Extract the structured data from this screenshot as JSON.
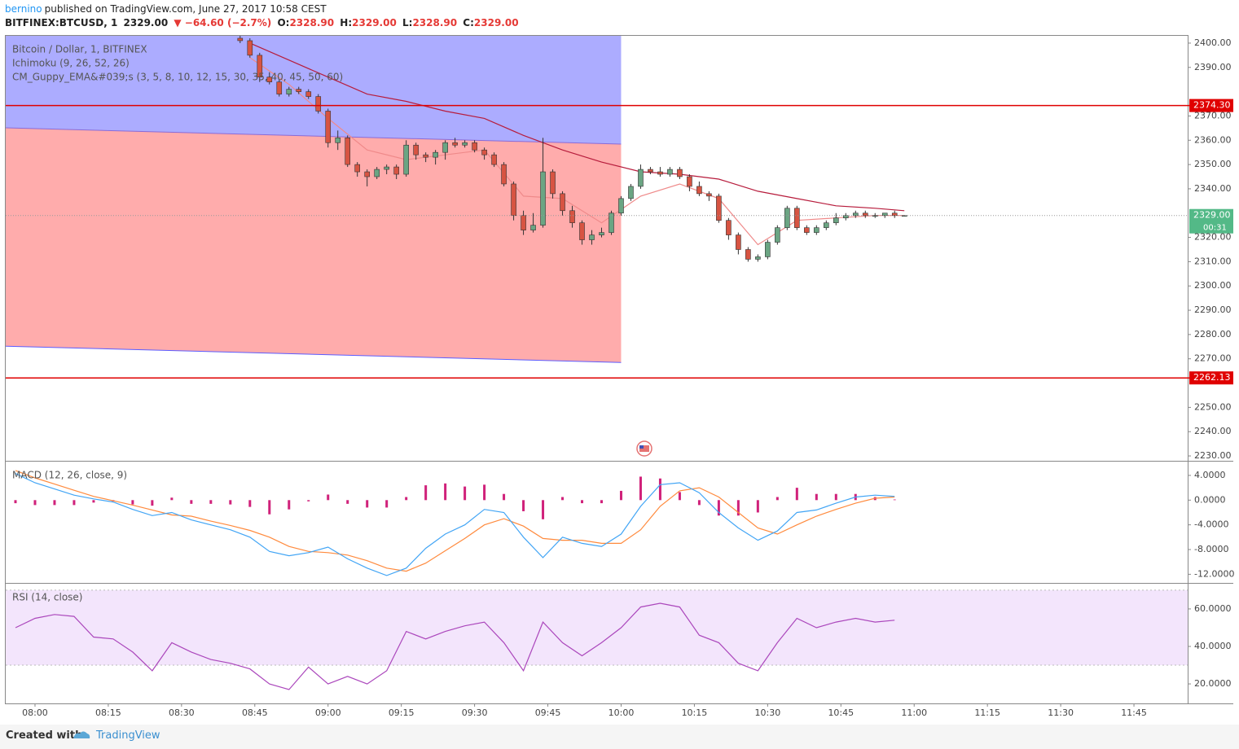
{
  "header": {
    "author": "bernino",
    "published": "published on TradingView.com, June 27, 2017 10:58 CEST",
    "symbol": "BITFINEX:BTCUSD, 1",
    "last": "2329.00",
    "change": "▼ −64.60 (−2.7%)",
    "ohlc": [
      {
        "label": "O:",
        "value": "2328.90"
      },
      {
        "label": "H:",
        "value": "2329.00"
      },
      {
        "label": "L:",
        "value": "2328.90"
      },
      {
        "label": "C:",
        "value": "2329.00"
      }
    ]
  },
  "footer": {
    "created": "Created with",
    "brand": "TradingView"
  },
  "chart_data": [
    {
      "type": "candlestick",
      "legend": [
        "Bitcoin / Dollar, 1, BITFINEX",
        "Ichimoku (9, 26, 52, 26)",
        "CM_Guppy_EMA&#039;s (3, 5, 8, 10, 12, 15, 30, 35, 40, 45, 50, 60)"
      ],
      "xlim": [
        "07:54",
        "11:56"
      ],
      "xticks": [
        "08:00",
        "08:15",
        "08:30",
        "08:45",
        "09:00",
        "09:15",
        "09:30",
        "09:45",
        "10:00",
        "10:15",
        "10:30",
        "10:45",
        "11:00",
        "11:15",
        "11:30",
        "11:45"
      ],
      "ylim": [
        2228,
        2403
      ],
      "yticks": [
        {
          "value": 2230,
          "label": "2230.00"
        },
        {
          "value": 2240,
          "label": "2240.00"
        },
        {
          "value": 2250,
          "label": "2250.00"
        },
        {
          "value": 2270,
          "label": "2270.00"
        },
        {
          "value": 2280,
          "label": "2280.00"
        },
        {
          "value": 2290,
          "label": "2290.00"
        },
        {
          "value": 2300,
          "label": "2300.00"
        },
        {
          "value": 2310,
          "label": "2310.00"
        },
        {
          "value": 2320,
          "label": "2320.00"
        },
        {
          "value": 2340,
          "label": "2340.00"
        },
        {
          "value": 2350,
          "label": "2350.00"
        },
        {
          "value": 2360,
          "label": "2360.00"
        },
        {
          "value": 2370,
          "label": "2370.00"
        },
        {
          "value": 2390,
          "label": "2390.00"
        },
        {
          "value": 2400,
          "label": "2400.00"
        }
      ],
      "up_color": "#6ba583",
      "down_color": "#d75442",
      "x": [
        "08:42",
        "08:44",
        "08:46",
        "08:48",
        "08:50",
        "08:52",
        "08:54",
        "08:56",
        "08:58",
        "09:00",
        "09:02",
        "09:04",
        "09:06",
        "09:08",
        "09:10",
        "09:12",
        "09:14",
        "09:16",
        "09:18",
        "09:20",
        "09:22",
        "09:24",
        "09:26",
        "09:28",
        "09:30",
        "09:32",
        "09:34",
        "09:36",
        "09:38",
        "09:40",
        "09:42",
        "09:44",
        "09:46",
        "09:48",
        "09:50",
        "09:52",
        "09:54",
        "09:56",
        "09:58",
        "10:00",
        "10:02",
        "10:04",
        "10:06",
        "10:08",
        "10:10",
        "10:12",
        "10:14",
        "10:16",
        "10:18",
        "10:20",
        "10:22",
        "10:24",
        "10:26",
        "10:28",
        "10:30",
        "10:32",
        "10:34",
        "10:36",
        "10:38",
        "10:40",
        "10:42",
        "10:44",
        "10:46",
        "10:48",
        "10:50",
        "10:52",
        "10:54",
        "10:56",
        "10:58"
      ],
      "open": [
        2402,
        2401,
        2395,
        2386,
        2384,
        2379,
        2381,
        2380,
        2378,
        2372,
        2359,
        2361,
        2350,
        2347,
        2345,
        2348,
        2349,
        2346,
        2358,
        2354,
        2353,
        2355,
        2359,
        2358,
        2359,
        2356,
        2354,
        2350,
        2342,
        2329,
        2323,
        2325,
        2347,
        2338,
        2331,
        2326,
        2319,
        2321,
        2322,
        2330,
        2336,
        2341,
        2348,
        2347,
        2346,
        2348,
        2345,
        2341,
        2338,
        2337,
        2327,
        2321,
        2315,
        2311,
        2312,
        2318,
        2324,
        2332,
        2324,
        2322,
        2324,
        2326,
        2328,
        2329,
        2330,
        2329,
        2329,
        2330,
        2328.9
      ],
      "high": [
        2403,
        2402,
        2396,
        2388,
        2385,
        2382,
        2382,
        2381,
        2379,
        2373,
        2364,
        2362,
        2351,
        2348,
        2349,
        2350,
        2350,
        2360,
        2359,
        2355,
        2356,
        2360,
        2361,
        2360,
        2360,
        2357,
        2355,
        2351,
        2343,
        2331,
        2330,
        2361,
        2348,
        2339,
        2333,
        2327,
        2323,
        2324,
        2331,
        2337,
        2342,
        2350,
        2349,
        2349,
        2349,
        2349,
        2346,
        2343,
        2339,
        2338,
        2328,
        2322,
        2316,
        2313,
        2319,
        2325,
        2333,
        2333,
        2325,
        2325,
        2327,
        2330,
        2330,
        2331,
        2331,
        2330,
        2330,
        2331,
        2329
      ],
      "low": [
        2400,
        2394,
        2384,
        2383,
        2378,
        2378,
        2379,
        2377,
        2371,
        2357,
        2356,
        2349,
        2345,
        2341,
        2344,
        2346,
        2344,
        2345,
        2352,
        2351,
        2350,
        2352,
        2357,
        2357,
        2355,
        2352,
        2349,
        2341,
        2327,
        2321,
        2322,
        2324,
        2336,
        2329,
        2324,
        2317,
        2317,
        2320,
        2321,
        2329,
        2335,
        2340,
        2346,
        2345,
        2345,
        2344,
        2339,
        2337,
        2335,
        2326,
        2319,
        2313,
        2310,
        2310,
        2311,
        2317,
        2323,
        2323,
        2321,
        2321,
        2323,
        2325,
        2327,
        2328,
        2328,
        2328,
        2328,
        2328,
        2328.9
      ],
      "close": [
        2401,
        2395,
        2386,
        2384,
        2379,
        2381,
        2380,
        2378,
        2372,
        2359,
        2361,
        2350,
        2347,
        2345,
        2348,
        2349,
        2346,
        2358,
        2354,
        2353,
        2355,
        2359,
        2358,
        2359,
        2356,
        2354,
        2350,
        2342,
        2329,
        2323,
        2325,
        2347,
        2338,
        2331,
        2326,
        2319,
        2321,
        2322,
        2330,
        2336,
        2341,
        2348,
        2347,
        2346,
        2348,
        2345,
        2341,
        2338,
        2337,
        2327,
        2321,
        2315,
        2311,
        2312,
        2318,
        2324,
        2332,
        2324,
        2322,
        2324,
        2326,
        2328,
        2329,
        2330,
        2329,
        2329,
        2330,
        2329,
        2329
      ],
      "series": [
        {
          "color": "#b71c3c",
          "x": [
            "08:44",
            "08:52",
            "09:00",
            "09:08",
            "09:16",
            "09:24",
            "09:32",
            "09:40",
            "09:48",
            "09:56",
            "10:04",
            "10:12",
            "10:20",
            "10:28",
            "10:36",
            "10:44",
            "10:52",
            "10:58"
          ],
          "values": [
            2400,
            2393,
            2386,
            2379,
            2376,
            2372,
            2369,
            2362,
            2356,
            2351,
            2347,
            2346,
            2344,
            2339,
            2336,
            2333,
            2332,
            2331
          ]
        },
        {
          "color": "#ef8a8a",
          "x": [
            "08:44",
            "08:52",
            "09:00",
            "09:08",
            "09:16",
            "09:24",
            "09:32",
            "09:40",
            "09:48",
            "09:56",
            "10:04",
            "10:12",
            "10:20",
            "10:28",
            "10:36",
            "10:44",
            "10:52",
            "10:58"
          ],
          "values": [
            2394,
            2383,
            2369,
            2356,
            2352,
            2354,
            2356,
            2337,
            2336,
            2326,
            2337,
            2342,
            2336,
            2317,
            2327,
            2328,
            2329,
            2329
          ]
        }
      ],
      "channel": {
        "x": [
          "07:54",
          "10:00"
        ],
        "mid": [
          2365.1,
          2358.4
        ],
        "lower": [
          2275.2,
          2268.5
        ],
        "upper_color": "#8080ff",
        "lower_color": "#ff8080"
      },
      "levels": [
        {
          "value": 2374.3,
          "label": "2374.30",
          "color": "#e00000"
        },
        {
          "value": 2262.13,
          "label": "2262.13",
          "color": "#e00000"
        }
      ],
      "last": {
        "value": 2329,
        "label": "2329.00",
        "countdown": "00:31",
        "color": "#53b987"
      }
    },
    {
      "type": "macd",
      "label": "MACD (12, 26, close, 9)",
      "ylim": [
        -13.4,
        6.1
      ],
      "yticks": [
        {
          "value": 4,
          "label": "4.0000"
        },
        {
          "value": 0,
          "label": "0.0000"
        },
        {
          "value": -4,
          "label": "-4.0000"
        },
        {
          "value": -8,
          "label": "-8.0000"
        },
        {
          "value": -12,
          "label": "-12.0000"
        }
      ],
      "x": [
        "07:56",
        "08:00",
        "08:04",
        "08:08",
        "08:12",
        "08:16",
        "08:20",
        "08:24",
        "08:28",
        "08:32",
        "08:36",
        "08:40",
        "08:44",
        "08:48",
        "08:52",
        "08:56",
        "09:00",
        "09:04",
        "09:08",
        "09:12",
        "09:16",
        "09:20",
        "09:24",
        "09:28",
        "09:32",
        "09:36",
        "09:40",
        "09:44",
        "09:48",
        "09:52",
        "09:56",
        "10:00",
        "10:04",
        "10:08",
        "10:12",
        "10:16",
        "10:20",
        "10:24",
        "10:28",
        "10:32",
        "10:36",
        "10:40",
        "10:44",
        "10:48",
        "10:52",
        "10:56"
      ],
      "macd": {
        "color": "#42a5f5",
        "values": [
          4.3,
          2.8,
          1.8,
          0.8,
          0.2,
          -0.3,
          -1.5,
          -2.5,
          -2.0,
          -3.2,
          -4.0,
          -4.8,
          -6.0,
          -8.3,
          -9.0,
          -8.5,
          -7.6,
          -9.5,
          -11.0,
          -12.2,
          -11.0,
          -7.8,
          -5.5,
          -4.0,
          -1.5,
          -2.0,
          -6.0,
          -9.3,
          -6.0,
          -7.0,
          -7.5,
          -5.5,
          -1.0,
          2.5,
          2.8,
          1.2,
          -2.0,
          -4.5,
          -6.5,
          -5.0,
          -2.0,
          -1.6,
          -0.5,
          0.5,
          0.8,
          0.6
        ]
      },
      "signal": {
        "color": "#ff8a3d",
        "values": [
          4.8,
          3.6,
          2.6,
          1.6,
          0.6,
          -0.1,
          -0.8,
          -1.6,
          -2.4,
          -2.6,
          -3.4,
          -4.1,
          -4.9,
          -6.0,
          -7.5,
          -8.3,
          -8.5,
          -8.9,
          -9.8,
          -11.0,
          -11.5,
          -10.2,
          -8.2,
          -6.2,
          -4.0,
          -3.0,
          -4.2,
          -6.2,
          -6.5,
          -6.5,
          -7.0,
          -7.0,
          -4.8,
          -1.0,
          1.5,
          2.0,
          0.5,
          -2.0,
          -4.5,
          -5.5,
          -4.0,
          -2.6,
          -1.5,
          -0.5,
          0.3,
          0.5
        ]
      },
      "histogram": {
        "color": "#d0217a",
        "values": [
          -0.5,
          -0.8,
          -0.8,
          -0.8,
          -0.4,
          -0.2,
          -0.7,
          -0.9,
          0.4,
          -0.6,
          -0.6,
          -0.7,
          -1.1,
          -2.3,
          -1.5,
          -0.2,
          0.9,
          -0.6,
          -1.2,
          -1.2,
          0.5,
          2.4,
          2.7,
          2.2,
          2.5,
          1.0,
          -1.8,
          -3.1,
          0.5,
          -0.5,
          -0.5,
          1.5,
          3.8,
          3.5,
          1.3,
          -0.8,
          -2.5,
          -2.5,
          -2.0,
          0.5,
          2.0,
          1.0,
          1.0,
          1.0,
          0.5,
          0.1
        ]
      }
    },
    {
      "type": "rsi",
      "label": "RSI (14, close)",
      "ylim": [
        9.6,
        73
      ],
      "yticks": [
        {
          "value": 60,
          "label": "60.0000"
        },
        {
          "value": 40,
          "label": "40.0000"
        },
        {
          "value": 20,
          "label": "20.0000"
        }
      ],
      "band": [
        30,
        70
      ],
      "band_color": "#f3e5fc",
      "color": "#ab47bc",
      "x": [
        "07:56",
        "08:00",
        "08:04",
        "08:08",
        "08:12",
        "08:16",
        "08:20",
        "08:24",
        "08:28",
        "08:32",
        "08:36",
        "08:40",
        "08:44",
        "08:48",
        "08:52",
        "08:56",
        "09:00",
        "09:04",
        "09:08",
        "09:12",
        "09:16",
        "09:20",
        "09:24",
        "09:28",
        "09:32",
        "09:36",
        "09:40",
        "09:44",
        "09:48",
        "09:52",
        "09:56",
        "10:00",
        "10:04",
        "10:08",
        "10:12",
        "10:16",
        "10:20",
        "10:24",
        "10:28",
        "10:32",
        "10:36",
        "10:40",
        "10:44",
        "10:48",
        "10:52",
        "10:56"
      ],
      "values": [
        50,
        55,
        57,
        56,
        45,
        44,
        37,
        27,
        42,
        37,
        33,
        31,
        28,
        20,
        17,
        29,
        20,
        24,
        20,
        27,
        48,
        44,
        48,
        51,
        53,
        42,
        27,
        53,
        42,
        35,
        42,
        50,
        61,
        63,
        61,
        46,
        42,
        31,
        27,
        42,
        55,
        50,
        53,
        55,
        53,
        54
      ]
    }
  ]
}
